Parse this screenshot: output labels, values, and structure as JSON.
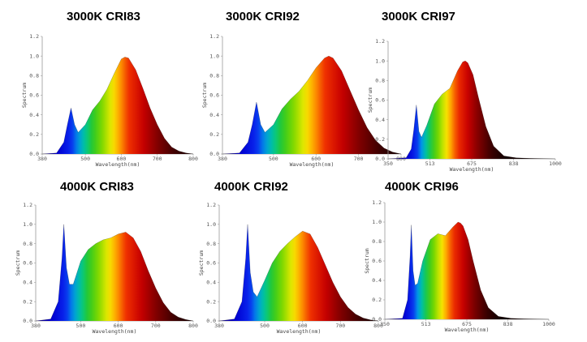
{
  "chart_data": [
    {
      "type": "area",
      "title": "3000K CRI83",
      "xlabel": "Wavelength(nm)",
      "ylabel": "Spectrum",
      "xlim": [
        380,
        800
      ],
      "ylim": [
        0,
        1.2
      ],
      "xticks": [
        380,
        500,
        600,
        700,
        800
      ],
      "yticks": [
        0,
        0.2,
        0.4,
        0.6,
        0.8,
        1.0,
        1.2
      ],
      "xtick_labels": [
        "380",
        "500",
        "600",
        "700",
        "800"
      ],
      "ytick_labels": [
        "0.0",
        "0.2",
        "0.4",
        "0.6",
        "0.8",
        "1.0",
        "1.2"
      ],
      "x": [
        380,
        420,
        440,
        450,
        460,
        470,
        480,
        500,
        520,
        540,
        560,
        580,
        600,
        610,
        620,
        640,
        660,
        680,
        700,
        720,
        740,
        760,
        780,
        800
      ],
      "y": [
        0,
        0.01,
        0.12,
        0.3,
        0.47,
        0.3,
        0.22,
        0.3,
        0.45,
        0.54,
        0.66,
        0.82,
        0.97,
        0.99,
        0.98,
        0.86,
        0.67,
        0.47,
        0.3,
        0.16,
        0.07,
        0.03,
        0.01,
        0
      ]
    },
    {
      "type": "area",
      "title": "3000K CRI92",
      "xlabel": "Wavelength(nm)",
      "ylabel": "Spectrum",
      "xlim": [
        380,
        800
      ],
      "ylim": [
        0,
        1.2
      ],
      "xticks": [
        380,
        500,
        600,
        700,
        800
      ],
      "yticks": [
        0,
        0.2,
        0.4,
        0.6,
        0.8,
        1.0,
        1.2
      ],
      "xtick_labels": [
        "380",
        "500",
        "600",
        "700",
        "800"
      ],
      "ytick_labels": [
        "0.0",
        "0.2",
        "0.4",
        "0.6",
        "0.8",
        "1.0",
        "1.2"
      ],
      "x": [
        380,
        420,
        440,
        450,
        460,
        470,
        480,
        500,
        520,
        540,
        560,
        580,
        600,
        620,
        630,
        640,
        660,
        680,
        700,
        720,
        740,
        760,
        780,
        800
      ],
      "y": [
        0,
        0.01,
        0.12,
        0.3,
        0.53,
        0.3,
        0.22,
        0.3,
        0.46,
        0.56,
        0.64,
        0.75,
        0.88,
        0.98,
        1.0,
        0.98,
        0.85,
        0.65,
        0.45,
        0.27,
        0.14,
        0.06,
        0.02,
        0
      ]
    },
    {
      "type": "area",
      "title": "3000K CRI97",
      "xlabel": "Wavelength(nm)",
      "ylabel": "Spectrum",
      "xlim": [
        350,
        1000
      ],
      "ylim": [
        0,
        1.2
      ],
      "xticks": [
        350,
        513,
        675,
        838,
        1000
      ],
      "yticks": [
        0,
        0.2,
        0.4,
        0.6,
        0.8,
        1.0,
        1.2
      ],
      "xtick_labels": [
        "350",
        "513",
        "675",
        "838",
        "1000"
      ],
      "ytick_labels": [
        "0.0",
        "0.2",
        "0.4",
        "0.6",
        "0.8",
        "1.0",
        "1.2"
      ],
      "x": [
        350,
        420,
        440,
        450,
        460,
        470,
        480,
        500,
        530,
        560,
        590,
        620,
        640,
        650,
        660,
        680,
        700,
        730,
        760,
        800,
        850,
        900,
        1000
      ],
      "y": [
        0,
        0.01,
        0.1,
        0.3,
        0.55,
        0.28,
        0.22,
        0.34,
        0.56,
        0.66,
        0.72,
        0.9,
        0.99,
        1.0,
        0.98,
        0.86,
        0.64,
        0.33,
        0.13,
        0.03,
        0.01,
        0.005,
        0
      ]
    },
    {
      "type": "area",
      "title": "4000K CRI83",
      "xlabel": "Wavelength(nm)",
      "ylabel": "Spectrum",
      "xlim": [
        380,
        800
      ],
      "ylim": [
        0,
        1.2
      ],
      "xticks": [
        380,
        500,
        600,
        700,
        800
      ],
      "yticks": [
        0,
        0.2,
        0.4,
        0.6,
        0.8,
        1.0,
        1.2
      ],
      "xtick_labels": [
        "380",
        "500",
        "600",
        "700",
        "800"
      ],
      "ytick_labels": [
        "0.0",
        "0.2",
        "0.4",
        "0.6",
        "0.8",
        "1.0",
        "1.2"
      ],
      "x": [
        380,
        420,
        440,
        450,
        455,
        462,
        470,
        480,
        500,
        520,
        540,
        560,
        580,
        600,
        620,
        640,
        660,
        680,
        700,
        720,
        740,
        760,
        780,
        800
      ],
      "y": [
        0,
        0.02,
        0.2,
        0.65,
        1.0,
        0.55,
        0.38,
        0.38,
        0.62,
        0.74,
        0.8,
        0.84,
        0.86,
        0.9,
        0.92,
        0.86,
        0.72,
        0.52,
        0.34,
        0.19,
        0.09,
        0.04,
        0.015,
        0
      ]
    },
    {
      "type": "area",
      "title": "4000K CRI92",
      "xlabel": "Wavelength(nm)",
      "ylabel": "Spectrum",
      "xlim": [
        380,
        800
      ],
      "ylim": [
        0,
        1.2
      ],
      "xticks": [
        380,
        500,
        600,
        700,
        800
      ],
      "yticks": [
        0,
        0.2,
        0.4,
        0.6,
        0.8,
        1.0,
        1.2
      ],
      "xtick_labels": [
        "380",
        "500",
        "600",
        "700",
        "800"
      ],
      "ytick_labels": [
        "0.0",
        "0.2",
        "0.4",
        "0.6",
        "0.8",
        "1.0",
        "1.2"
      ],
      "x": [
        380,
        420,
        440,
        450,
        455,
        462,
        470,
        480,
        500,
        520,
        540,
        560,
        580,
        600,
        620,
        640,
        660,
        680,
        700,
        720,
        740,
        760,
        780,
        800
      ],
      "y": [
        0,
        0.02,
        0.2,
        0.65,
        1.0,
        0.5,
        0.3,
        0.25,
        0.42,
        0.6,
        0.72,
        0.8,
        0.87,
        0.93,
        0.9,
        0.76,
        0.58,
        0.4,
        0.25,
        0.14,
        0.07,
        0.03,
        0.01,
        0
      ]
    },
    {
      "type": "area",
      "title": "4000K CRI96",
      "xlabel": "Wavelength(nm)",
      "ylabel": "Spectrum",
      "xlim": [
        350,
        1000
      ],
      "ylim": [
        0,
        1.2
      ],
      "xticks": [
        350,
        513,
        675,
        838,
        1000
      ],
      "yticks": [
        0,
        0.2,
        0.4,
        0.6,
        0.8,
        1.0,
        1.2
      ],
      "xtick_labels": [
        "350",
        "513",
        "675",
        "838",
        "1000"
      ],
      "ytick_labels": [
        "0.0",
        "0.2",
        "0.4",
        "0.6",
        "0.8",
        "1.0",
        "1.2"
      ],
      "x": [
        350,
        420,
        440,
        450,
        455,
        462,
        470,
        480,
        500,
        530,
        560,
        590,
        620,
        640,
        650,
        660,
        680,
        700,
        730,
        760,
        800,
        850,
        900,
        1000
      ],
      "y": [
        0,
        0.01,
        0.2,
        0.65,
        0.97,
        0.5,
        0.35,
        0.37,
        0.6,
        0.82,
        0.88,
        0.86,
        0.95,
        1.0,
        0.99,
        0.96,
        0.82,
        0.6,
        0.3,
        0.12,
        0.03,
        0.01,
        0.005,
        0
      ]
    }
  ]
}
